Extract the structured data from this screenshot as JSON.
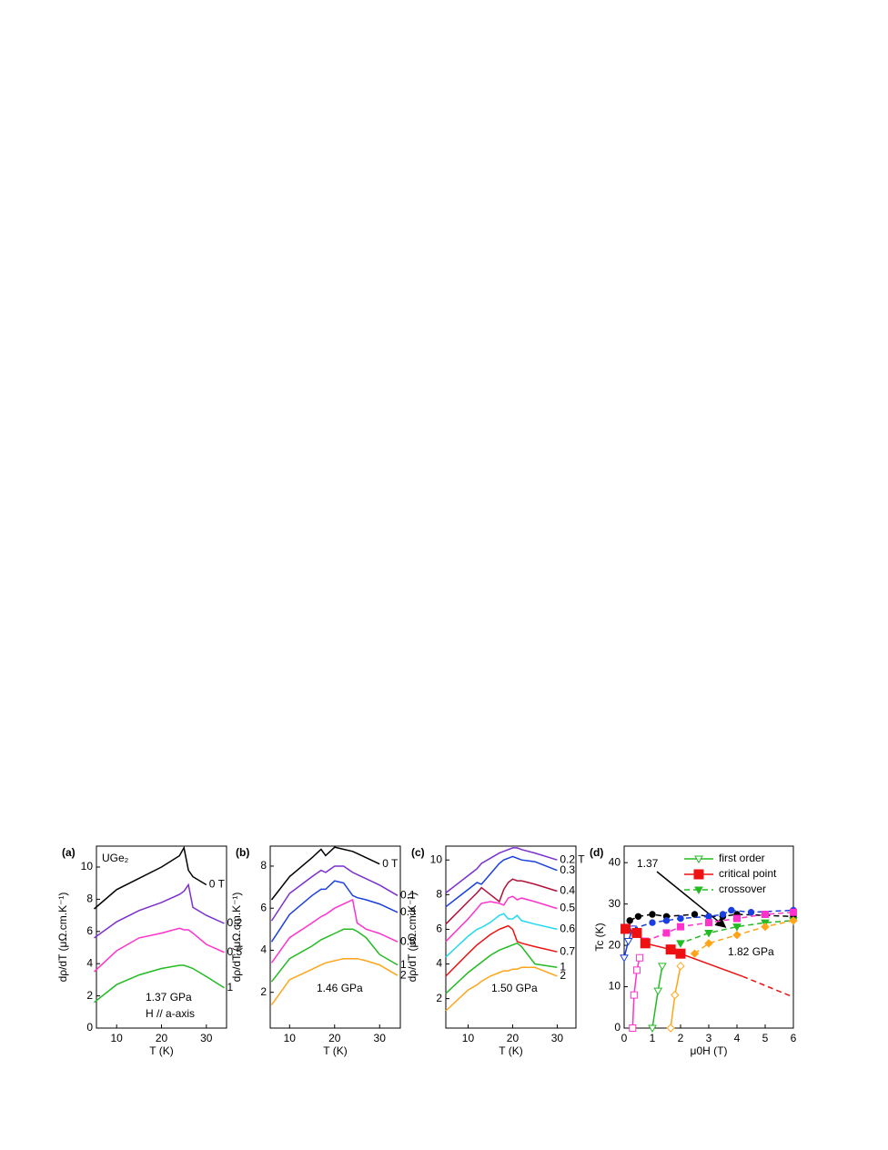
{
  "chart_data": [
    {
      "type": "line",
      "label": "(a)",
      "xlabel": "T (K)",
      "ylabel": "dρ/dT (μΩ.cm.K⁻¹)",
      "xlim": [
        5.5,
        34.5
      ],
      "ylim": [
        0,
        11.3
      ],
      "xticks": [
        10,
        20,
        30
      ],
      "yticks": [
        0,
        2,
        4,
        6,
        8,
        10
      ],
      "annotations": [
        "UGe₂",
        "1.37 GPa",
        "H // a-axis"
      ],
      "x": [
        5,
        10,
        15,
        20,
        24,
        25,
        26,
        27,
        30,
        34
      ],
      "series": [
        {
          "name": "0 T",
          "color": "#000000",
          "values": [
            7.4,
            8.6,
            9.3,
            10.0,
            10.7,
            11.2,
            9.8,
            9.4,
            8.9,
            null
          ]
        },
        {
          "name": "0.2",
          "color": "#7b2fd0",
          "values": [
            5.6,
            6.6,
            7.3,
            7.8,
            8.3,
            8.5,
            8.9,
            7.5,
            7.0,
            6.5
          ]
        },
        {
          "name": "0.5",
          "color": "#ff33cc",
          "values": [
            3.5,
            4.8,
            5.6,
            5.9,
            6.2,
            6.1,
            6.1,
            5.9,
            5.2,
            4.7
          ]
        },
        {
          "name": "1",
          "color": "#22bb22",
          "values": [
            1.6,
            2.7,
            3.3,
            3.7,
            3.9,
            3.9,
            3.8,
            3.7,
            3.2,
            2.5
          ]
        }
      ]
    },
    {
      "type": "line",
      "label": "(b)",
      "xlabel": "T (K)",
      "ylabel": "dρ/dT (μΩ.cm.K⁻¹)",
      "xlim": [
        5.7,
        34.6
      ],
      "ylim": [
        0.3,
        8.95
      ],
      "xticks": [
        10,
        20,
        30
      ],
      "yticks": [
        2,
        4,
        6,
        8
      ],
      "annotations": [
        "1.46 GPa"
      ],
      "x": [
        6,
        10,
        15,
        17,
        18,
        20,
        22,
        24,
        25,
        27,
        30,
        34
      ],
      "series": [
        {
          "name": "0 T",
          "color": "#000000",
          "values": [
            6.4,
            7.5,
            8.4,
            8.8,
            8.5,
            8.9,
            8.8,
            8.7,
            8.6,
            8.4,
            8.1,
            null
          ]
        },
        {
          "name": "0.1",
          "color": "#7b2fd0",
          "values": [
            5.4,
            6.7,
            7.5,
            7.8,
            7.7,
            8.0,
            8.0,
            7.7,
            7.6,
            7.4,
            7.1,
            6.6
          ]
        },
        {
          "name": "0.3",
          "color": "#1a3fe0",
          "values": [
            4.4,
            5.7,
            6.6,
            6.9,
            6.9,
            7.3,
            7.2,
            6.6,
            6.5,
            6.4,
            6.2,
            5.8
          ]
        },
        {
          "name": "0.5",
          "color": "#ff33cc",
          "values": [
            3.4,
            4.6,
            5.3,
            5.6,
            5.7,
            6.0,
            6.2,
            6.4,
            5.3,
            5.0,
            4.8,
            4.4
          ]
        },
        {
          "name": "1",
          "color": "#22bb22",
          "values": [
            2.5,
            3.6,
            4.2,
            4.5,
            4.6,
            4.8,
            5.0,
            5.0,
            4.9,
            4.6,
            3.8,
            3.3
          ]
        },
        {
          "name": "2",
          "color": "#ffa51a",
          "values": [
            1.4,
            2.6,
            3.1,
            3.3,
            3.4,
            3.5,
            3.6,
            3.6,
            3.6,
            3.5,
            3.3,
            2.8
          ]
        }
      ]
    },
    {
      "type": "line",
      "label": "(c)",
      "xlabel": "T (K)",
      "ylabel": "dρ/dT (μΩ.cm.K⁻¹)",
      "xlim": [
        5,
        34.2
      ],
      "ylim": [
        0.3,
        10.8
      ],
      "xticks": [
        10,
        20,
        30
      ],
      "yticks": [
        2,
        4,
        6,
        8,
        10
      ],
      "annotations": [
        "1.50 GPa"
      ],
      "x": [
        5,
        10,
        12,
        13,
        15,
        17,
        18,
        19,
        20,
        21,
        22,
        25,
        30
      ],
      "series": [
        {
          "name": "0.2 T",
          "color": "#7b2fd0",
          "values": [
            8.1,
            9.1,
            9.5,
            9.8,
            10.1,
            10.4,
            10.5,
            10.6,
            10.7,
            10.7,
            10.6,
            10.4,
            10.0
          ]
        },
        {
          "name": "0.3",
          "color": "#1a3fe0",
          "values": [
            7.3,
            8.3,
            8.7,
            8.6,
            9.2,
            9.8,
            10.0,
            10.1,
            10.2,
            10.1,
            10.0,
            9.9,
            9.4
          ]
        },
        {
          "name": "0.4",
          "color": "#b0103a",
          "values": [
            6.3,
            7.6,
            8.1,
            8.4,
            8.0,
            7.6,
            8.3,
            8.7,
            8.9,
            8.8,
            8.8,
            8.6,
            8.2
          ]
        },
        {
          "name": "0.5",
          "color": "#ff33cc",
          "values": [
            5.3,
            6.6,
            7.2,
            7.5,
            7.6,
            7.5,
            7.4,
            7.8,
            7.9,
            7.7,
            7.8,
            7.6,
            7.2
          ]
        },
        {
          "name": "0.6",
          "color": "#22d8f0",
          "values": [
            4.4,
            5.6,
            6.0,
            6.1,
            6.4,
            6.8,
            6.9,
            6.6,
            6.6,
            6.8,
            6.5,
            6.3,
            6.0
          ]
        },
        {
          "name": "0.7",
          "color": "#ee1111",
          "values": [
            3.3,
            4.6,
            5.1,
            5.3,
            5.7,
            6.0,
            6.1,
            6.2,
            6.0,
            5.3,
            5.2,
            5.0,
            4.7
          ]
        },
        {
          "name": "1",
          "color": "#22bb22",
          "values": [
            2.3,
            3.5,
            3.9,
            4.1,
            4.5,
            4.8,
            4.9,
            5.0,
            5.1,
            5.2,
            5.0,
            4.0,
            3.8
          ]
        },
        {
          "name": "2",
          "color": "#ffa51a",
          "values": [
            1.3,
            2.5,
            2.8,
            3.0,
            3.3,
            3.5,
            3.6,
            3.6,
            3.7,
            3.7,
            3.8,
            3.8,
            3.3
          ]
        }
      ]
    },
    {
      "type": "line",
      "label": "(d)",
      "xlabel": "μ0H (T)",
      "ylabel": "Tc (K)",
      "xlim": [
        0,
        6
      ],
      "ylim": [
        0,
        44
      ],
      "xticks": [
        0,
        1,
        2,
        3,
        4,
        5,
        6
      ],
      "yticks": [
        0,
        10,
        20,
        30,
        40
      ],
      "legend": "upper right",
      "annotations": [
        "1.37",
        "1.82 GPa"
      ],
      "series": [
        {
          "color": "#000000",
          "dash": true,
          "marker": "circle",
          "x": [
            0.2,
            0.5,
            1,
            1.5,
            2.5,
            3,
            3.5,
            4,
            6
          ],
          "values": [
            26,
            27,
            27.5,
            27,
            27.5,
            27,
            27,
            27.5,
            27
          ]
        },
        {
          "color": "#1a3fe0",
          "dash": true,
          "marker": "circle",
          "x": [
            0.3,
            1,
            1.5,
            2,
            3,
            3.5,
            3.8,
            4.5,
            6
          ],
          "values": [
            24,
            25.5,
            26,
            26.5,
            27,
            27.5,
            28.5,
            28,
            28.5
          ]
        },
        {
          "color": "#1a3fe0",
          "dash": false,
          "marker": "open-triangle",
          "x": [
            0,
            0.15,
            0.3
          ],
          "values": [
            17,
            21,
            24
          ]
        },
        {
          "color": "#ff33cc",
          "dash": false,
          "marker": "open-square",
          "x": [
            0.3,
            0.35,
            0.45,
            0.55
          ],
          "values": [
            0,
            8,
            14,
            17
          ]
        },
        {
          "color": "#ff33cc",
          "dash": true,
          "marker": "square",
          "x": [
            0.75,
            1.5,
            2,
            3,
            4,
            5,
            6
          ],
          "values": [
            21,
            23,
            24.5,
            25.5,
            26.5,
            27.5,
            28
          ]
        },
        {
          "name": "first order",
          "color": "#22bb22",
          "dash": false,
          "marker": "open-triangle",
          "x": [
            1,
            1.2,
            1.35
          ],
          "values": [
            0,
            9,
            15
          ]
        },
        {
          "name": "crossover",
          "color": "#22bb22",
          "dash": true,
          "marker": "triangle",
          "x": [
            1.65,
            2,
            3,
            4,
            5,
            6
          ],
          "values": [
            19,
            20.5,
            23,
            24.5,
            25.5,
            26
          ]
        },
        {
          "color": "#ffa51a",
          "dash": false,
          "marker": "open-diamond",
          "x": [
            1.65,
            1.8,
            2
          ],
          "values": [
            0,
            8,
            15
          ]
        },
        {
          "color": "#ffa51a",
          "dash": true,
          "marker": "diamond",
          "x": [
            2.5,
            3,
            4,
            5,
            6
          ],
          "values": [
            18,
            20.5,
            22.5,
            24.5,
            26
          ]
        },
        {
          "name": "critical point",
          "color": "#ee1111",
          "dash": false,
          "marker": "big-square",
          "x": [
            0.05,
            0.45,
            0.75,
            1.65,
            2
          ],
          "values": [
            24,
            23,
            20.5,
            19,
            18
          ]
        },
        {
          "color": "#ee1111",
          "dash": false,
          "x": [
            2,
            4.2
          ],
          "values": [
            18,
            12.5
          ]
        },
        {
          "color": "#ee1111",
          "dash": true,
          "x": [
            4.2,
            6
          ],
          "values": [
            12.5,
            7.5
          ]
        }
      ]
    }
  ]
}
